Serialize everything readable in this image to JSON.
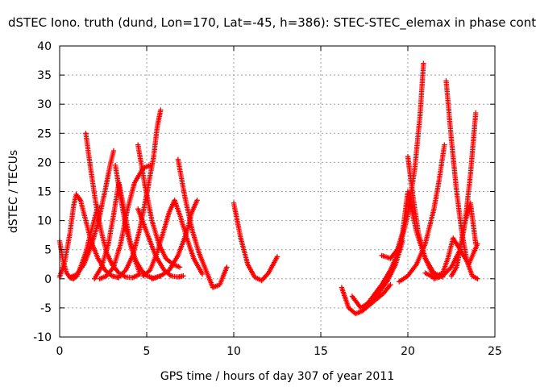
{
  "chart_data": {
    "type": "scatter",
    "title": "dSTEC Iono. truth (dund, Lon=170, Lat=-45, h=386): STEC-STEC_elemax in phase cont",
    "xlabel": "GPS time / hours of day 307 of year 2011",
    "ylabel": "dSTEC  / TECUs",
    "xlim": [
      0,
      25
    ],
    "ylim": [
      -10,
      40
    ],
    "xticks": [
      0,
      5,
      10,
      15,
      20,
      25
    ],
    "yticks": [
      -10,
      -5,
      0,
      5,
      10,
      15,
      20,
      25,
      30,
      35,
      40
    ],
    "grid": true,
    "marker": "+",
    "color": "#ff0000",
    "series": [
      {
        "x": [
          0.0,
          0.2,
          0.4,
          0.6,
          0.8,
          1.0,
          1.2,
          1.5,
          1.8,
          2.2
        ],
        "y": [
          6.5,
          3.0,
          1.0,
          0.2,
          0.0,
          0.5,
          2.0,
          4.5,
          8.0,
          12.5
        ]
      },
      {
        "x": [
          0.0,
          0.3,
          0.6,
          0.8,
          0.95,
          1.2,
          1.5,
          1.8,
          2.2,
          2.6,
          3.0,
          3.4
        ],
        "y": [
          0.3,
          3.0,
          8.0,
          12.5,
          14.5,
          13.5,
          10.0,
          6.5,
          3.5,
          1.5,
          0.5,
          0.2
        ]
      },
      {
        "x": [
          1.5,
          1.8,
          2.1,
          2.4,
          2.7,
          3.0,
          3.4,
          3.8,
          4.2,
          4.6
        ],
        "y": [
          25.0,
          18.5,
          12.5,
          8.0,
          4.5,
          2.5,
          1.0,
          0.3,
          0.2,
          0.8
        ]
      },
      {
        "x": [
          0.6,
          1.0,
          1.4,
          1.8,
          2.2,
          2.6,
          2.9,
          3.1
        ],
        "y": [
          0.2,
          0.8,
          2.5,
          5.5,
          9.5,
          15.0,
          19.5,
          22.0
        ]
      },
      {
        "x": [
          2.3,
          2.7,
          3.1,
          3.5,
          3.9,
          4.3,
          4.8,
          5.2
        ],
        "y": [
          0.0,
          0.5,
          2.0,
          6.0,
          12.0,
          16.5,
          19.0,
          19.5
        ]
      },
      {
        "x": [
          3.2,
          3.5,
          3.8,
          4.1,
          4.4,
          4.7,
          5.0,
          5.4,
          5.8
        ],
        "y": [
          19.5,
          14.0,
          9.0,
          5.5,
          3.0,
          1.5,
          0.5,
          0.1,
          0.5
        ]
      },
      {
        "x": [
          2.0,
          2.4,
          2.8,
          3.1,
          3.4,
          3.7,
          4.0,
          4.3,
          4.6
        ],
        "y": [
          0.0,
          2.0,
          6.0,
          11.0,
          16.5,
          12.0,
          7.0,
          3.5,
          1.0
        ]
      },
      {
        "x": [
          4.5,
          4.9,
          5.3,
          5.7,
          6.1,
          6.5,
          6.9
        ],
        "y": [
          23.0,
          16.0,
          10.0,
          6.0,
          3.5,
          2.5,
          2.0
        ]
      },
      {
        "x": [
          3.4,
          3.8,
          4.2,
          4.6,
          5.0,
          5.4,
          5.6,
          5.8
        ],
        "y": [
          0.3,
          1.5,
          4.0,
          8.5,
          14.5,
          21.0,
          26.0,
          29.0
        ]
      },
      {
        "x": [
          4.8,
          5.2,
          5.6,
          6.0,
          6.3,
          6.6,
          6.9,
          7.3,
          7.7,
          8.2
        ],
        "y": [
          0.5,
          1.5,
          4.5,
          8.5,
          11.5,
          13.5,
          11.0,
          7.0,
          3.5,
          0.8
        ]
      },
      {
        "x": [
          4.5,
          5.0,
          5.5,
          6.0,
          6.4,
          6.8,
          7.1
        ],
        "y": [
          12.0,
          8.0,
          4.0,
          1.5,
          0.5,
          0.3,
          0.5
        ]
      },
      {
        "x": [
          6.8,
          7.2,
          7.6,
          8.0,
          8.4,
          8.8,
          9.2,
          9.6
        ],
        "y": [
          20.5,
          14.0,
          8.5,
          4.5,
          1.5,
          -1.5,
          -1.0,
          2.0
        ]
      },
      {
        "x": [
          5.3,
          5.8,
          6.3,
          6.8,
          7.3,
          7.6,
          7.9
        ],
        "y": [
          0.0,
          0.5,
          1.5,
          4.0,
          8.0,
          11.5,
          13.5
        ]
      },
      {
        "x": [
          10.0,
          10.4,
          10.8,
          11.2,
          11.6,
          12.0,
          12.5
        ],
        "y": [
          13.0,
          7.0,
          2.5,
          0.3,
          -0.3,
          1.0,
          3.8
        ]
      },
      {
        "x": [
          16.2,
          16.6,
          17.0,
          17.4,
          17.8,
          18.2,
          18.6,
          19.0
        ],
        "y": [
          -1.5,
          -5.0,
          -6.0,
          -5.5,
          -4.5,
          -3.5,
          -2.5,
          -1.0
        ]
      },
      {
        "x": [
          16.8,
          17.3,
          17.8,
          18.3,
          18.8,
          19.3,
          19.7
        ],
        "y": [
          -3.0,
          -5.0,
          -4.0,
          -2.5,
          -0.5,
          2.5,
          6.5
        ]
      },
      {
        "x": [
          17.5,
          18.0,
          18.5,
          19.0,
          19.5,
          20.0,
          20.4,
          20.7,
          20.9
        ],
        "y": [
          -5.0,
          -3.0,
          -1.0,
          1.5,
          5.0,
          11.0,
          19.0,
          28.0,
          37.0
        ]
      },
      {
        "x": [
          18.5,
          19.0,
          19.4,
          19.7,
          20.0,
          20.5,
          21.0,
          21.5,
          22.0
        ],
        "y": [
          4.0,
          3.5,
          5.0,
          8.0,
          15.0,
          8.0,
          3.5,
          1.0,
          0.3
        ]
      },
      {
        "x": [
          20.0,
          20.3,
          20.6,
          21.0,
          21.4,
          21.8
        ],
        "y": [
          21.0,
          14.0,
          8.0,
          3.5,
          1.0,
          0.3
        ]
      },
      {
        "x": [
          19.5,
          20.0,
          20.5,
          21.0,
          21.5,
          21.8,
          22.1
        ],
        "y": [
          -0.5,
          0.5,
          2.5,
          6.0,
          12.0,
          17.0,
          23.0
        ]
      },
      {
        "x": [
          22.2,
          22.5,
          22.8,
          23.1,
          23.4,
          23.7,
          24.0
        ],
        "y": [
          34.0,
          24.0,
          15.0,
          8.0,
          3.0,
          0.5,
          0.0
        ]
      },
      {
        "x": [
          21.5,
          22.0,
          22.5,
          23.0,
          23.3,
          23.6,
          23.9
        ],
        "y": [
          0.0,
          0.5,
          2.0,
          5.0,
          10.0,
          18.0,
          28.5
        ]
      },
      {
        "x": [
          22.5,
          22.8,
          23.0,
          23.3,
          23.6,
          23.9
        ],
        "y": [
          0.5,
          2.0,
          5.0,
          10.0,
          13.0,
          6.0
        ]
      },
      {
        "x": [
          21.0,
          21.5,
          22.0,
          22.3,
          22.6,
          23.0,
          23.5,
          24.0
        ],
        "y": [
          1.0,
          0.2,
          1.0,
          3.5,
          7.0,
          5.0,
          2.5,
          6.0
        ]
      }
    ]
  }
}
